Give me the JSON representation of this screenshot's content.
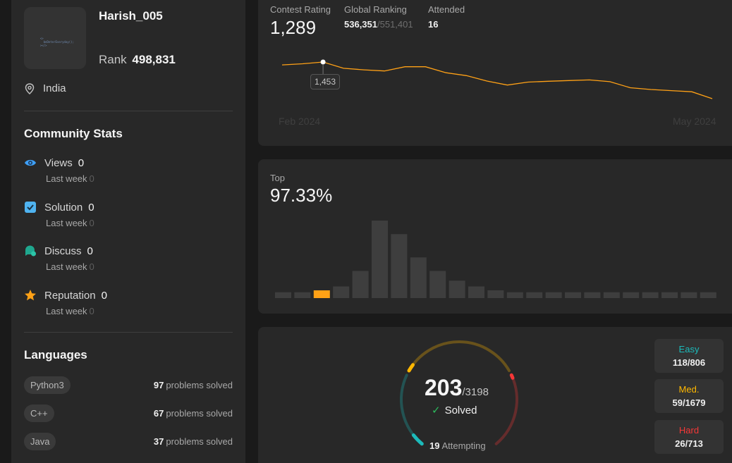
{
  "profile": {
    "username": "Harish_005",
    "rank_label": "Rank",
    "rank_value": "498,831",
    "location": "India"
  },
  "community": {
    "title": "Community Stats",
    "items": [
      {
        "label": "Views",
        "value": "0",
        "sub_label": "Last week",
        "sub_value": "0",
        "icon": "eye-icon"
      },
      {
        "label": "Solution",
        "value": "0",
        "sub_label": "Last week",
        "sub_value": "0",
        "icon": "solution-check-icon"
      },
      {
        "label": "Discuss",
        "value": "0",
        "sub_label": "Last week",
        "sub_value": "0",
        "icon": "discuss-icon"
      },
      {
        "label": "Reputation",
        "value": "0",
        "sub_label": "Last week",
        "sub_value": "0",
        "icon": "star-icon"
      }
    ]
  },
  "languages": {
    "title": "Languages",
    "items": [
      {
        "name": "Python3",
        "count": "97",
        "suffix": "problems solved"
      },
      {
        "name": "C++",
        "count": "67",
        "suffix": "problems solved"
      },
      {
        "name": "Java",
        "count": "37",
        "suffix": "problems solved"
      }
    ]
  },
  "contest": {
    "rating_label": "Contest Rating",
    "rating_value": "1,289",
    "global_label": "Global Ranking",
    "global_value": "536,351",
    "global_total": "/551,401",
    "attended_label": "Attended",
    "attended_value": "16",
    "tooltip": "1,453",
    "x_start": "Feb 2024",
    "x_end": "May 2024",
    "colors": {
      "line": "#ffa116"
    }
  },
  "top": {
    "label": "Top",
    "value": "97.33%"
  },
  "chart_data": [
    {
      "type": "line",
      "title": "",
      "x": [
        "Feb 2024",
        "",
        "",
        "",
        "",
        "",
        "",
        "",
        "",
        "",
        "",
        "",
        "",
        "",
        "",
        "",
        "",
        "",
        "",
        "",
        "",
        "May 2024"
      ],
      "series": [
        {
          "values": [
            1440,
            1445,
            1453,
            1425,
            1418,
            1413,
            1432,
            1432,
            1405,
            1392,
            1368,
            1350,
            1363,
            1367,
            1370,
            1373,
            1365,
            1338,
            1330,
            1325,
            1320,
            1289
          ]
        }
      ],
      "highlight_index": 2,
      "xlabel": "",
      "ylabel": "",
      "grid": false
    },
    {
      "type": "bar",
      "title": "",
      "categories": [
        "1",
        "2",
        "3",
        "4",
        "5",
        "6",
        "7",
        "8",
        "9",
        "10",
        "11",
        "12",
        "13",
        "14",
        "15",
        "16",
        "17",
        "18",
        "19",
        "20",
        "21",
        "22",
        "23"
      ],
      "values": [
        3,
        3,
        4,
        6,
        14,
        40,
        33,
        21,
        14,
        9,
        6,
        4,
        3,
        3,
        3,
        3,
        3,
        3,
        3,
        3,
        3,
        3,
        3
      ],
      "highlight_index": 2,
      "colors": {
        "bar": "#3e3e3e",
        "highlight": "#ffa116"
      }
    }
  ],
  "solved": {
    "value": "203",
    "total": "/3198",
    "label": "Solved",
    "attempting_count": "19",
    "attempting_label": "Attempting",
    "easy_count": 118,
    "medium_count": 59,
    "hard_count": 26,
    "colors": {
      "easy": "#1cbaba",
      "medium": "#ffb700",
      "hard": "#f63737"
    }
  },
  "difficulty": [
    {
      "label": "Easy",
      "value": "118/806",
      "color": "#1cbaba"
    },
    {
      "label": "Med.",
      "value": "59/1679",
      "color": "#ffb800"
    },
    {
      "label": "Hard",
      "value": "26/713",
      "color": "#f63737"
    }
  ]
}
